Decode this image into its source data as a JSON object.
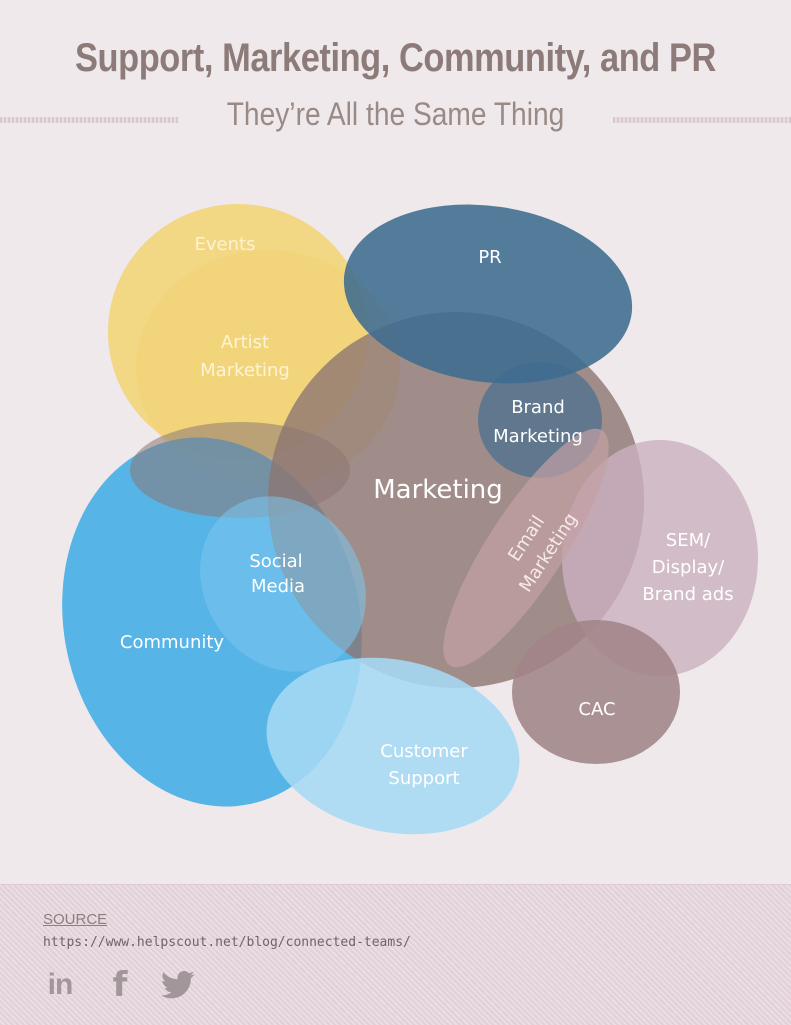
{
  "header": {
    "title": "Support, Marketing, Community, and PR",
    "subtitle": "They’re All the Same Thing"
  },
  "diagram": {
    "labels": {
      "events": "Events",
      "artist_marketing_1": "Artist",
      "artist_marketing_2": "Marketing",
      "pr": "PR",
      "brand_marketing_1": "Brand",
      "brand_marketing_2": "Marketing",
      "marketing": "Marketing",
      "email_marketing_1": "Email",
      "email_marketing_2": "Marketing",
      "social_media_1": "Social",
      "social_media_2": "Media",
      "community": "Community",
      "sem_1": "SEM/",
      "sem_2": "Display/",
      "sem_3": "Brand ads",
      "cac": "CAC",
      "customer_support_1": "Customer",
      "customer_support_2": "Support"
    },
    "colors": {
      "events": "#f2d372",
      "pr": "#3e6c90",
      "marketing": "#8c7672",
      "community": "#4aafe6",
      "customer_support": "#a6daf4",
      "sem": "#cbb0bf",
      "cac": "#a08488",
      "email": "#b4949a"
    }
  },
  "footer": {
    "source_label": "SOURCE",
    "source_url": "https://www.helpscout.net/blog/connected-teams/",
    "social_icons": [
      "linkedin-icon",
      "facebook-icon",
      "twitter-icon"
    ],
    "linkedin_text": "in",
    "facebook_text": "f"
  }
}
